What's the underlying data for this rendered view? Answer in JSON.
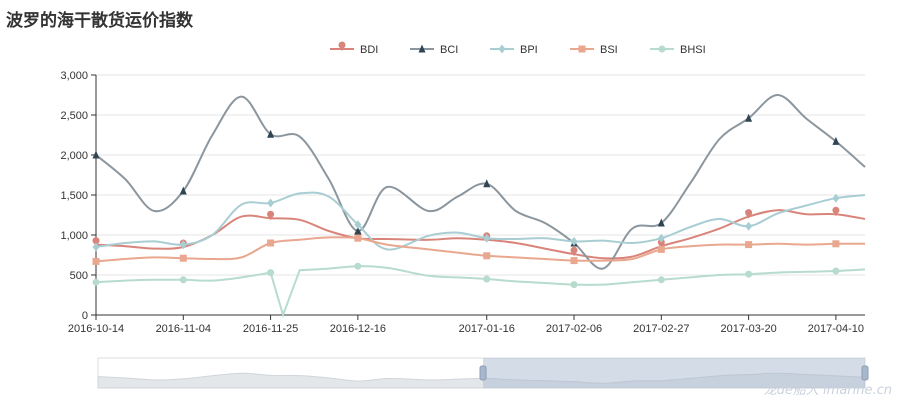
{
  "page_title": "波罗的海干散货运价指数",
  "watermark": "龙de船人 imarine.cn",
  "chart_data": {
    "type": "line",
    "title": "波罗的海干散货运价指数",
    "xlabel": "",
    "ylabel": "",
    "ylim": [
      0,
      3000
    ],
    "yticks": [
      0,
      500,
      1000,
      1500,
      2000,
      2500,
      3000
    ],
    "ytick_labels": [
      "0",
      "500",
      "1,000",
      "1,500",
      "2,000",
      "2,500",
      "3,000"
    ],
    "xticks": [
      "2016-10-14",
      "2016-11-04",
      "2016-11-25",
      "2016-12-16",
      "2017-01-16",
      "2017-02-06",
      "2017-02-27",
      "2017-03-20",
      "2017-04-10"
    ],
    "x": [
      "2016-10-14",
      "2016-10-21",
      "2016-10-28",
      "2016-11-04",
      "2016-11-11",
      "2016-11-18",
      "2016-11-25",
      "2016-12-02",
      "2016-12-09",
      "2016-12-16",
      "2016-12-23",
      "2017-01-02",
      "2017-01-09",
      "2017-01-16",
      "2017-01-23",
      "2017-01-30",
      "2017-02-06",
      "2017-02-13",
      "2017-02-20",
      "2017-02-27",
      "2017-03-06",
      "2017-03-13",
      "2017-03-20",
      "2017-03-27",
      "2017-04-03",
      "2017-04-10",
      "2017-04-17"
    ],
    "grid": true,
    "legend_position": "top-center",
    "series": [
      {
        "name": "BDI",
        "color": "#d9847a",
        "marker": "pin",
        "values": [
          880,
          860,
          830,
          850,
          1000,
          1230,
          1210,
          1190,
          1050,
          960,
          950,
          940,
          960,
          940,
          900,
          830,
          760,
          710,
          730,
          860,
          960,
          1080,
          1230,
          1310,
          1260,
          1260,
          1200
        ]
      },
      {
        "name": "BCI",
        "color": "#8b969e",
        "marker": "triangle",
        "values": [
          2000,
          1700,
          1300,
          1550,
          2250,
          2730,
          2260,
          2230,
          1700,
          1050,
          1600,
          1300,
          1480,
          1640,
          1300,
          1150,
          900,
          580,
          1080,
          1150,
          1650,
          2200,
          2460,
          2750,
          2450,
          2170,
          1850
        ]
      },
      {
        "name": "BPI",
        "color": "#a8cdd3",
        "marker": "diamond",
        "values": [
          850,
          900,
          920,
          880,
          1000,
          1380,
          1400,
          1520,
          1480,
          1130,
          820,
          990,
          1030,
          960,
          950,
          960,
          920,
          930,
          900,
          960,
          1100,
          1200,
          1110,
          1270,
          1370,
          1460,
          1500
        ]
      },
      {
        "name": "BSI",
        "color": "#e8a78e",
        "marker": "square",
        "values": [
          670,
          700,
          720,
          710,
          700,
          720,
          900,
          940,
          970,
          960,
          880,
          820,
          780,
          740,
          720,
          700,
          680,
          680,
          700,
          820,
          860,
          880,
          880,
          890,
          880,
          890,
          890
        ]
      },
      {
        "name": "BHSI",
        "color": "#b7dbcc",
        "marker": "circle",
        "values": [
          410,
          430,
          440,
          440,
          430,
          470,
          530,
          560,
          580,
          610,
          590,
          490,
          470,
          450,
          420,
          400,
          380,
          380,
          410,
          440,
          470,
          500,
          510,
          530,
          540,
          550,
          570
        ]
      }
    ],
    "annotations": [
      {
        "series": "BHSI",
        "x": "2016-11-28",
        "y": 0,
        "note": "drop"
      }
    ]
  }
}
